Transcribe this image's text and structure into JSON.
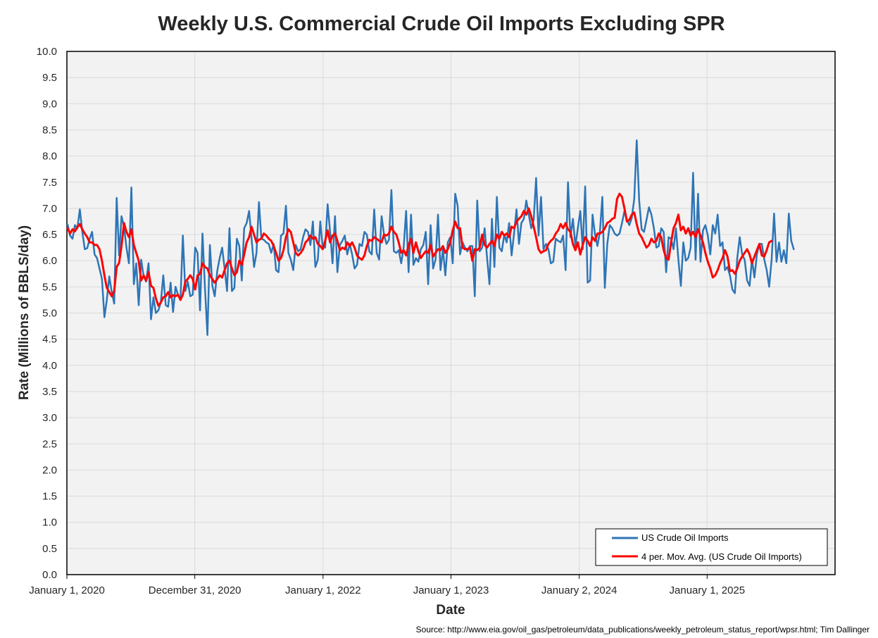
{
  "chart_data": {
    "type": "line",
    "title": "Weekly U.S. Commercial Crude Oil Imports Excluding SPR",
    "xlabel": "Date",
    "ylabel": "Rate (Millions of BBLS/day)",
    "ylim": [
      0,
      10
    ],
    "yticks": [
      "0.0",
      "0.5",
      "1.0",
      "1.5",
      "2.0",
      "2.5",
      "3.0",
      "3.5",
      "4.0",
      "4.5",
      "5.0",
      "5.5",
      "6.0",
      "6.5",
      "7.0",
      "7.5",
      "8.0",
      "8.5",
      "9.0",
      "9.5",
      "10.0"
    ],
    "xlim": [
      "2020-01-01",
      "2026-01-01"
    ],
    "xticks": [
      {
        "date": "2020-01-01",
        "label": "January 1, 2020"
      },
      {
        "date": "2020-12-31",
        "label": "December 31, 2020"
      },
      {
        "date": "2022-01-01",
        "label": "January 1, 2022"
      },
      {
        "date": "2023-01-01",
        "label": "January 1, 2023"
      },
      {
        "date": "2024-01-02",
        "label": "January 2, 2024"
      },
      {
        "date": "2025-01-01",
        "label": "January 1, 2025"
      }
    ],
    "grid": true,
    "legend_position": "bottom-right",
    "start_date": "2020-01-03",
    "interval_days": 7,
    "series": [
      {
        "name": "US Crude Oil Imports",
        "color": "#2e75b6",
        "values": [
          6.69,
          6.48,
          6.42,
          6.68,
          6.62,
          6.98,
          6.55,
          6.22,
          6.24,
          6.42,
          6.55,
          6.12,
          6.05,
          5.85,
          5.65,
          4.92,
          5.25,
          5.7,
          5.4,
          5.18,
          7.2,
          6.1,
          6.85,
          6.65,
          6.25,
          5.95,
          7.4,
          5.55,
          5.95,
          5.15,
          6.02,
          5.7,
          5.6,
          5.95,
          4.88,
          5.3,
          5.0,
          5.05,
          5.2,
          5.72,
          5.15,
          5.12,
          5.58,
          5.02,
          5.5,
          5.35,
          5.25,
          6.48,
          5.42,
          5.6,
          5.32,
          5.35,
          6.25,
          6.15,
          5.05,
          6.52,
          5.48,
          4.58,
          6.3,
          5.52,
          5.32,
          5.8,
          6.05,
          6.25,
          5.85,
          5.42,
          6.62,
          5.42,
          5.48,
          6.42,
          6.28,
          5.62,
          6.62,
          6.72,
          6.95,
          6.42,
          5.88,
          6.15,
          7.12,
          6.42,
          6.4,
          6.35,
          6.32,
          6.15,
          6.32,
          5.82,
          5.78,
          6.48,
          6.52,
          7.05,
          6.15,
          6.02,
          5.82,
          6.3,
          6.18,
          6.22,
          6.45,
          6.6,
          6.55,
          6.3,
          6.75,
          5.88,
          6.02,
          6.75,
          6.25,
          6.25,
          7.08,
          6.55,
          5.95,
          6.85,
          5.78,
          6.3,
          6.38,
          6.48,
          6.12,
          6.32,
          6.12,
          5.85,
          5.92,
          6.32,
          6.28,
          6.55,
          6.5,
          6.18,
          6.12,
          6.98,
          6.15,
          6.02,
          6.85,
          6.5,
          6.32,
          6.4,
          7.35,
          6.18,
          6.15,
          6.2,
          5.95,
          6.25,
          6.95,
          5.78,
          6.88,
          5.92,
          6.05,
          5.98,
          6.22,
          6.3,
          6.55,
          5.55,
          6.68,
          5.85,
          6.02,
          6.88,
          5.82,
          6.22,
          5.72,
          6.35,
          6.45,
          5.95,
          7.28,
          7.05,
          6.12,
          6.35,
          6.25,
          6.18,
          6.28,
          6.28,
          5.32,
          7.15,
          6.18,
          6.25,
          6.62,
          6.05,
          5.55,
          6.8,
          5.88,
          7.22,
          6.25,
          6.18,
          6.5,
          6.35,
          6.72,
          6.1,
          6.52,
          6.98,
          6.32,
          6.72,
          6.8,
          7.15,
          6.88,
          6.62,
          6.78,
          7.58,
          6.48,
          7.22,
          6.22,
          6.32,
          6.22,
          5.95,
          5.98,
          6.42,
          6.38,
          6.35,
          6.48,
          5.82,
          7.5,
          6.45,
          6.8,
          6.28,
          6.62,
          6.95,
          6.22,
          7.42,
          5.58,
          5.62,
          6.88,
          6.5,
          6.28,
          6.55,
          7.22,
          5.48,
          6.32,
          6.68,
          6.62,
          6.52,
          6.48,
          6.52,
          6.72,
          6.95,
          6.78,
          6.68,
          6.82,
          7.18,
          8.3,
          7.15,
          6.6,
          6.55,
          6.78,
          7.02,
          6.88,
          6.62,
          6.25,
          6.28,
          6.62,
          6.55,
          5.78,
          6.45,
          6.42,
          6.22,
          6.62,
          6.02,
          5.52,
          6.35,
          6.0,
          6.05,
          6.25,
          7.68,
          6.02,
          7.28,
          5.98,
          6.58,
          6.68,
          6.48,
          6.12,
          6.68,
          6.52,
          6.88,
          6.28,
          6.35,
          5.82,
          5.88,
          5.72,
          5.45,
          5.38,
          6.05,
          6.45,
          6.12,
          6.02,
          5.62,
          5.52,
          6.02,
          5.68,
          6.12,
          6.32,
          6.32,
          6.02,
          5.82,
          5.5,
          6.02,
          6.9,
          5.98,
          6.35,
          5.98,
          6.2,
          5.95,
          6.9,
          6.38,
          6.22
        ]
      },
      {
        "name": "4 per. Mov. Avg. (US Crude Oil Imports)",
        "color": "#ff0000",
        "values": [
          6.62,
          6.52,
          6.6,
          6.56,
          6.64,
          6.7,
          6.6,
          6.52,
          6.45,
          6.35,
          6.35,
          6.3,
          6.3,
          6.22,
          6.0,
          5.72,
          5.48,
          5.4,
          5.32,
          5.42,
          5.88,
          5.96,
          6.28,
          6.72,
          6.55,
          6.45,
          6.6,
          6.3,
          6.15,
          6.0,
          5.62,
          5.72,
          5.62,
          5.78,
          5.52,
          5.48,
          5.28,
          5.14,
          5.2,
          5.3,
          5.32,
          5.4,
          5.3,
          5.34,
          5.32,
          5.35,
          5.25,
          5.35,
          5.6,
          5.65,
          5.72,
          5.65,
          5.45,
          5.72,
          5.75,
          5.95,
          5.88,
          5.85,
          5.72,
          5.65,
          5.58,
          5.65,
          5.72,
          5.68,
          5.82,
          5.95,
          6.0,
          5.85,
          5.72,
          5.78,
          6.0,
          5.92,
          6.12,
          6.35,
          6.45,
          6.65,
          6.5,
          6.35,
          6.4,
          6.42,
          6.52,
          6.48,
          6.42,
          6.38,
          6.28,
          6.15,
          6.0,
          6.05,
          6.2,
          6.45,
          6.6,
          6.55,
          6.35,
          6.15,
          6.1,
          6.15,
          6.22,
          6.35,
          6.4,
          6.48,
          6.42,
          6.45,
          6.32,
          6.28,
          6.22,
          6.38,
          6.58,
          6.35,
          6.48,
          6.52,
          6.38,
          6.2,
          6.25,
          6.22,
          6.35,
          6.28,
          6.35,
          6.25,
          6.1,
          6.05,
          6.02,
          6.1,
          6.28,
          6.4,
          6.38,
          6.45,
          6.42,
          6.38,
          6.35,
          6.5,
          6.48,
          6.52,
          6.65,
          6.55,
          6.5,
          6.35,
          6.15,
          6.2,
          6.1,
          6.3,
          6.42,
          6.15,
          6.35,
          6.18,
          6.05,
          6.12,
          6.18,
          6.15,
          6.3,
          6.08,
          6.15,
          6.22,
          6.2,
          6.28,
          6.15,
          6.22,
          6.35,
          6.58,
          6.75,
          6.62,
          6.62,
          6.25,
          6.22,
          6.22,
          6.25,
          6.0,
          6.22,
          6.2,
          6.25,
          6.5,
          6.3,
          6.25,
          6.32,
          6.38,
          6.28,
          6.5,
          6.42,
          6.55,
          6.48,
          6.52,
          6.45,
          6.65,
          6.62,
          6.75,
          6.8,
          6.85,
          6.95,
          6.88,
          7.0,
          6.85,
          6.65,
          6.45,
          6.22,
          6.15,
          6.18,
          6.2,
          6.32,
          6.38,
          6.42,
          6.52,
          6.58,
          6.7,
          6.62,
          6.72,
          6.6,
          6.55,
          6.32,
          6.2,
          6.35,
          6.12,
          6.3,
          6.45,
          6.38,
          6.28,
          6.45,
          6.38,
          6.52,
          6.52,
          6.55,
          6.62,
          6.72,
          6.75,
          6.8,
          6.82,
          7.18,
          7.28,
          7.22,
          7.0,
          6.75,
          6.78,
          6.88,
          6.92,
          6.7,
          6.52,
          6.45,
          6.35,
          6.25,
          6.3,
          6.42,
          6.35,
          6.38,
          6.52,
          6.45,
          6.2,
          6.05,
          6.02,
          6.35,
          6.62,
          6.72,
          6.88,
          6.58,
          6.65,
          6.52,
          6.62,
          6.48,
          6.55,
          6.45,
          6.6,
          6.48,
          6.35,
          6.15,
          5.98,
          5.85,
          5.68,
          5.72,
          5.82,
          5.95,
          6.05,
          6.2,
          6.08,
          5.8,
          5.82,
          5.75,
          5.85,
          6.0,
          6.08,
          6.15,
          6.22,
          6.12,
          5.95,
          6.08,
          6.2,
          6.32,
          6.1,
          6.08,
          6.2,
          6.35,
          6.38
        ]
      }
    ]
  },
  "source": "Source: http://www.eia.gov/oil_gas/petroleum/data_publications/weekly_petroleum_status_report/wpsr.html; Tim Dallinger"
}
